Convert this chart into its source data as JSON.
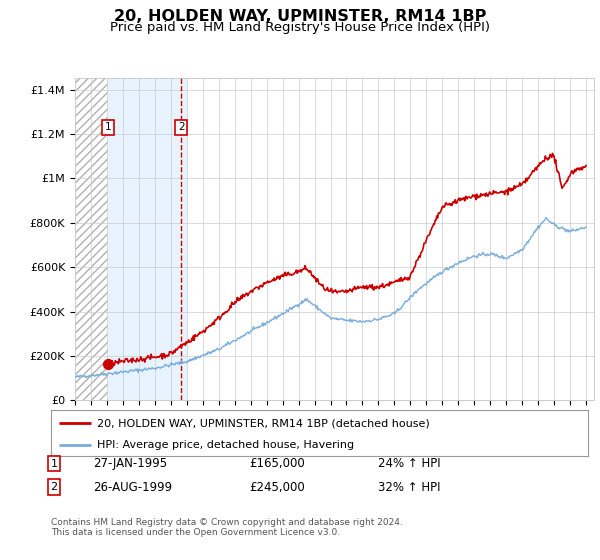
{
  "title": "20, HOLDEN WAY, UPMINSTER, RM14 1BP",
  "subtitle": "Price paid vs. HM Land Registry's House Price Index (HPI)",
  "title_fontsize": 11.5,
  "subtitle_fontsize": 9.5,
  "legend_label_red": "20, HOLDEN WAY, UPMINSTER, RM14 1BP (detached house)",
  "legend_label_blue": "HPI: Average price, detached house, Havering",
  "footnote": "Contains HM Land Registry data © Crown copyright and database right 2024.\nThis data is licensed under the Open Government Licence v3.0.",
  "purchase1_date": 1995.07,
  "purchase1_price": 165000,
  "purchase1_label": "27-JAN-1995",
  "purchase1_hpi": "24% ↑ HPI",
  "purchase2_date": 1999.65,
  "purchase2_price": 245000,
  "purchase2_label": "26-AUG-1999",
  "purchase2_hpi": "32% ↑ HPI",
  "hatch_start": 1993.0,
  "hatch_end": 1995.07,
  "shade_start": 1995.07,
  "shade_end": 2000.0,
  "ylim": [
    0,
    1450000
  ],
  "xlim": [
    1993.0,
    2025.5
  ],
  "red_color": "#cc0000",
  "blue_color": "#7aaddb",
  "shade_color": "#ddeeff",
  "background_color": "#ffffff",
  "grid_color": "#cccccc",
  "hpi_breakpoints": [
    [
      1993.0,
      105000
    ],
    [
      1995.0,
      120000
    ],
    [
      1996.0,
      128000
    ],
    [
      1998.0,
      145000
    ],
    [
      2000.0,
      175000
    ],
    [
      2002.0,
      230000
    ],
    [
      2004.0,
      310000
    ],
    [
      2006.0,
      390000
    ],
    [
      2007.5,
      455000
    ],
    [
      2009.0,
      370000
    ],
    [
      2010.0,
      360000
    ],
    [
      2011.0,
      355000
    ],
    [
      2012.0,
      365000
    ],
    [
      2013.0,
      390000
    ],
    [
      2014.5,
      500000
    ],
    [
      2016.0,
      580000
    ],
    [
      2017.0,
      620000
    ],
    [
      2018.0,
      650000
    ],
    [
      2019.0,
      660000
    ],
    [
      2020.0,
      640000
    ],
    [
      2021.0,
      680000
    ],
    [
      2022.0,
      780000
    ],
    [
      2022.5,
      820000
    ],
    [
      2023.0,
      790000
    ],
    [
      2024.0,
      760000
    ],
    [
      2025.0,
      780000
    ]
  ],
  "red_breakpoints": [
    [
      1995.07,
      165000
    ],
    [
      1996.0,
      175000
    ],
    [
      1997.0,
      185000
    ],
    [
      1998.0,
      195000
    ],
    [
      1999.0,
      210000
    ],
    [
      1999.65,
      245000
    ],
    [
      2000.0,
      260000
    ],
    [
      2001.0,
      310000
    ],
    [
      2002.0,
      370000
    ],
    [
      2003.0,
      440000
    ],
    [
      2004.0,
      490000
    ],
    [
      2005.0,
      530000
    ],
    [
      2006.0,
      560000
    ],
    [
      2007.0,
      580000
    ],
    [
      2007.5,
      595000
    ],
    [
      2008.5,
      510000
    ],
    [
      2009.0,
      490000
    ],
    [
      2009.5,
      485000
    ],
    [
      2010.0,
      490000
    ],
    [
      2011.0,
      510000
    ],
    [
      2012.0,
      510000
    ],
    [
      2013.0,
      530000
    ],
    [
      2014.0,
      560000
    ],
    [
      2015.0,
      720000
    ],
    [
      2016.0,
      870000
    ],
    [
      2017.0,
      900000
    ],
    [
      2018.0,
      920000
    ],
    [
      2019.0,
      930000
    ],
    [
      2020.0,
      940000
    ],
    [
      2021.0,
      970000
    ],
    [
      2022.5,
      1095000
    ],
    [
      2023.0,
      1100000
    ],
    [
      2023.5,
      950000
    ],
    [
      2024.0,
      1020000
    ],
    [
      2024.5,
      1045000
    ],
    [
      2025.0,
      1050000
    ]
  ]
}
